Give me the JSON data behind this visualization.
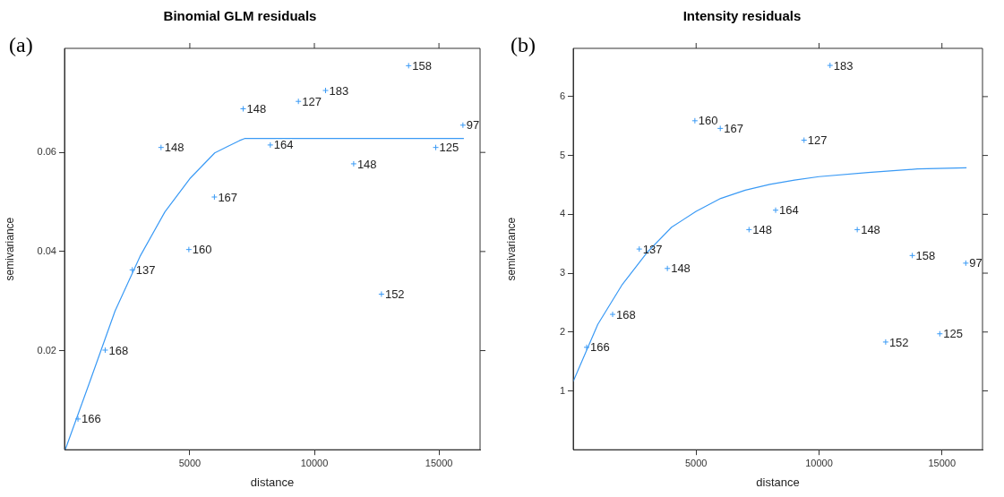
{
  "chart_data": [
    {
      "type": "scatter",
      "title": "Binomial GLM residuals",
      "xlabel": "distance",
      "ylabel": "semivariance",
      "xlim": [
        -30,
        16650
      ],
      "ylim": [
        0,
        0.081
      ],
      "xticks": [
        5000,
        10000,
        15000
      ],
      "yticks": [
        0.02,
        0.04,
        0.06
      ],
      "grid": false,
      "legend": false,
      "annotations": [
        "(a)",
        {
          "text": "166",
          "x": 512,
          "y": 0.0062
        },
        {
          "text": "168",
          "x": 1603,
          "y": 0.0201
        },
        {
          "text": "137",
          "x": 2692,
          "y": 0.0363
        },
        {
          "text": "148",
          "x": 3846,
          "y": 0.061
        },
        {
          "text": "160",
          "x": 4962,
          "y": 0.0404
        },
        {
          "text": "167",
          "x": 5987,
          "y": 0.051
        },
        {
          "text": "148",
          "x": 7141,
          "y": 0.0688
        },
        {
          "text": "164",
          "x": 8231,
          "y": 0.0615
        },
        {
          "text": "127",
          "x": 9359,
          "y": 0.0703
        },
        {
          "text": "183",
          "x": 10449,
          "y": 0.0725
        },
        {
          "text": "148",
          "x": 11577,
          "y": 0.0577
        },
        {
          "text": "152",
          "x": 12692,
          "y": 0.0314
        },
        {
          "text": "158",
          "x": 13782,
          "y": 0.0775
        },
        {
          "text": "125",
          "x": 14872,
          "y": 0.061
        },
        {
          "text": "97",
          "x": 15962,
          "y": 0.0655
        }
      ],
      "series": [
        {
          "type": "scatter",
          "marker": "cross",
          "color": "#3a9af5",
          "x": [
            512,
            1603,
            2692,
            3846,
            4962,
            5987,
            7141,
            8231,
            9359,
            10449,
            11577,
            12692,
            13782,
            14872,
            15962
          ],
          "values": [
            0.0062,
            0.0201,
            0.0363,
            0.061,
            0.0404,
            0.051,
            0.0688,
            0.0615,
            0.0703,
            0.0725,
            0.0577,
            0.0314,
            0.0775,
            0.061,
            0.0655
          ]
        },
        {
          "type": "line",
          "marker": "none",
          "color": "#3a9af5",
          "x": [
            0,
            1000,
            2000,
            3000,
            4000,
            5000,
            6000,
            7000,
            7200,
            16000
          ],
          "values": [
            0,
            0.0139,
            0.028,
            0.039,
            0.048,
            0.0547,
            0.0599,
            0.0624,
            0.0628,
            0.0628
          ]
        }
      ]
    },
    {
      "type": "scatter",
      "title": "Intensity residuals",
      "xlabel": "distance",
      "ylabel": "semivariance",
      "xlim": [
        0,
        16650
      ],
      "ylim": [
        0,
        6.82
      ],
      "xticks": [
        5000,
        10000,
        15000
      ],
      "yticks": [
        1,
        2,
        3,
        4,
        5,
        6
      ],
      "grid": false,
      "legend": false,
      "annotations": [
        "(b)",
        {
          "text": "166",
          "x": 547,
          "y": 1.74
        },
        {
          "text": "168",
          "x": 1604,
          "y": 2.3
        },
        {
          "text": "137",
          "x": 2687,
          "y": 3.41
        },
        {
          "text": "148",
          "x": 3831,
          "y": 3.08
        },
        {
          "text": "160",
          "x": 4950,
          "y": 5.59
        },
        {
          "text": "167",
          "x": 5983,
          "y": 5.46
        },
        {
          "text": "148",
          "x": 7152,
          "y": 3.74
        },
        {
          "text": "164",
          "x": 8234,
          "y": 4.07
        },
        {
          "text": "127",
          "x": 9391,
          "y": 5.26
        },
        {
          "text": "183",
          "x": 10448,
          "y": 6.53
        },
        {
          "text": "148",
          "x": 11555,
          "y": 3.74
        },
        {
          "text": "152",
          "x": 12711,
          "y": 1.83
        },
        {
          "text": "158",
          "x": 13794,
          "y": 3.3
        },
        {
          "text": "125",
          "x": 14913,
          "y": 1.97
        },
        {
          "text": "97",
          "x": 15970,
          "y": 3.17
        }
      ],
      "series": [
        {
          "type": "scatter",
          "marker": "cross",
          "color": "#3a9af5",
          "x": [
            547,
            1604,
            2687,
            3831,
            4950,
            5983,
            7152,
            8234,
            9391,
            10448,
            11555,
            12711,
            13794,
            14913,
            15970
          ],
          "values": [
            1.74,
            2.3,
            3.41,
            3.08,
            5.59,
            5.46,
            3.74,
            4.07,
            5.26,
            6.53,
            3.74,
            1.83,
            3.3,
            1.97,
            3.17
          ]
        },
        {
          "type": "line",
          "marker": "none",
          "color": "#3a9af5",
          "x": [
            0,
            1000,
            2000,
            3000,
            4000,
            5000,
            6000,
            7000,
            8000,
            9000,
            10000,
            12000,
            14000,
            16000
          ],
          "values": [
            1.16,
            2.13,
            2.81,
            3.35,
            3.78,
            4.05,
            4.27,
            4.41,
            4.51,
            4.58,
            4.64,
            4.71,
            4.77,
            4.79
          ]
        }
      ]
    }
  ]
}
